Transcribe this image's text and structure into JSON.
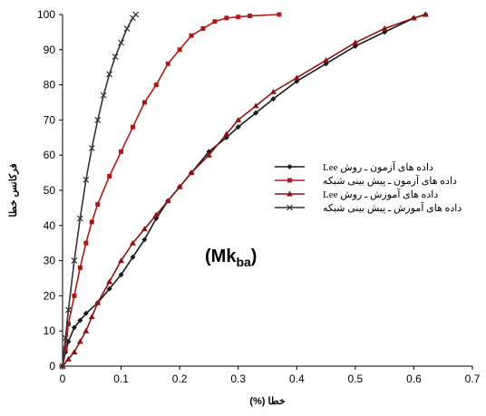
{
  "chart_data": {
    "type": "line",
    "title": "",
    "annotation": {
      "main": "(Mk",
      "sub": "ba",
      "close": ")"
    },
    "xlabel": "(%) خطا",
    "ylabel": "فرکانس خطا",
    "xlim": [
      0,
      0.7
    ],
    "ylim": [
      0,
      100
    ],
    "xticks": [
      "0",
      "0.1",
      "0.2",
      "0.3",
      "0.4",
      "0.5",
      "0.6",
      "0.7"
    ],
    "yticks": [
      "0",
      "10",
      "20",
      "30",
      "40",
      "50",
      "60",
      "70",
      "80",
      "90",
      "100"
    ],
    "grid": false,
    "legend_position": "right",
    "series": [
      {
        "name": "داده های آزمون ـ روش Lee",
        "color": "#1a1a1a",
        "marker": "diamond",
        "x": [
          0,
          0.005,
          0.01,
          0.02,
          0.03,
          0.04,
          0.06,
          0.08,
          0.1,
          0.12,
          0.14,
          0.16,
          0.18,
          0.2,
          0.22,
          0.25,
          0.28,
          0.3,
          0.33,
          0.36,
          0.4,
          0.45,
          0.5,
          0.55,
          0.6,
          0.62
        ],
        "y": [
          0,
          4,
          7,
          11,
          13,
          15,
          18,
          22,
          26,
          31,
          36,
          42,
          47,
          51,
          55,
          61,
          65,
          68,
          72,
          76,
          81,
          86,
          91,
          95,
          99,
          100
        ]
      },
      {
        "name": "داده های آزمون ـ پیش بینی شبکه",
        "color": "#b01818",
        "marker": "square",
        "x": [
          0,
          0.005,
          0.01,
          0.02,
          0.03,
          0.04,
          0.05,
          0.06,
          0.08,
          0.1,
          0.12,
          0.14,
          0.16,
          0.18,
          0.2,
          0.22,
          0.24,
          0.26,
          0.28,
          0.3,
          0.32,
          0.37
        ],
        "y": [
          0,
          5,
          12,
          20,
          28,
          35,
          41,
          46,
          54,
          61,
          68,
          75,
          80,
          86,
          90,
          94,
          96,
          98,
          99,
          99.3,
          99.6,
          100
        ]
      },
      {
        "name": "داده های آموزش ـ روش Lee",
        "color": "#8b1414",
        "marker": "triangle",
        "x": [
          0,
          0.01,
          0.02,
          0.03,
          0.04,
          0.05,
          0.06,
          0.08,
          0.1,
          0.12,
          0.14,
          0.16,
          0.18,
          0.2,
          0.22,
          0.25,
          0.28,
          0.3,
          0.33,
          0.36,
          0.4,
          0.45,
          0.5,
          0.55,
          0.6,
          0.62
        ],
        "y": [
          0,
          2,
          4,
          7,
          10,
          14,
          18,
          24,
          30,
          35,
          39,
          43,
          47,
          51,
          55,
          60,
          66,
          70,
          74,
          78,
          82,
          87,
          92,
          96,
          99,
          100
        ]
      },
      {
        "name": "داده های آموزش ـ پیش بینی شبکه",
        "color": "#333333",
        "marker": "x",
        "x": [
          0,
          0.005,
          0.01,
          0.02,
          0.03,
          0.04,
          0.05,
          0.06,
          0.07,
          0.08,
          0.09,
          0.1,
          0.11,
          0.12,
          0.125
        ],
        "y": [
          0,
          8,
          16,
          30,
          42,
          53,
          62,
          70,
          77,
          83,
          88,
          92,
          96,
          99,
          100
        ]
      }
    ]
  }
}
